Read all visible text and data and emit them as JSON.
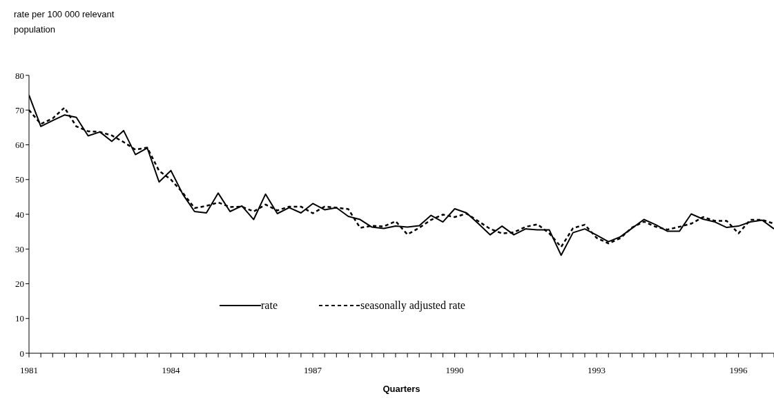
{
  "chart_data": {
    "type": "line",
    "ylabel": "rate per 100 000 relevant population",
    "xlabel": "Quarters",
    "categories": [
      "1981",
      null,
      null,
      null,
      null,
      null,
      null,
      null,
      null,
      null,
      null,
      null,
      "1984",
      null,
      null,
      null,
      null,
      null,
      null,
      null,
      null,
      null,
      null,
      null,
      "1987",
      null,
      null,
      null,
      null,
      null,
      null,
      null,
      null,
      null,
      null,
      null,
      "1990",
      null,
      null,
      null,
      null,
      null,
      null,
      null,
      null,
      null,
      null,
      null,
      "1993",
      null,
      null,
      null,
      null,
      null,
      null,
      null,
      null,
      null,
      null,
      null,
      "1996",
      null,
      null,
      null
    ],
    "series": [
      {
        "name": "rate",
        "color": "#000000",
        "line_style": "solid",
        "values": [
          74.3,
          65.3,
          67.0,
          68.6,
          67.9,
          62.6,
          63.7,
          61.0,
          64.1,
          57.2,
          59.1,
          49.3,
          52.6,
          45.8,
          40.8,
          40.4,
          46.1,
          40.8,
          42.4,
          38.5,
          45.8,
          40.2,
          41.9,
          40.4,
          43.1,
          41.3,
          41.9,
          39.4,
          38.5,
          36.3,
          35.9,
          36.6,
          36.3,
          36.7,
          39.7,
          37.8,
          41.6,
          40.4,
          37.3,
          34.1,
          36.6,
          34.1,
          35.8,
          35.5,
          35.5,
          28.2,
          34.7,
          35.8,
          34.0,
          32.1,
          33.5,
          36.0,
          38.5,
          37.0,
          35.1,
          35.1,
          40.1,
          38.6,
          37.8,
          36.2,
          36.6,
          37.8,
          38.3,
          35.8
        ]
      },
      {
        "name": "seasonally adjusted rate",
        "color": "#000000",
        "line_style": "dashed",
        "values": [
          70.0,
          66.0,
          67.6,
          70.7,
          65.3,
          63.9,
          63.7,
          62.7,
          60.8,
          58.6,
          59.2,
          52.5,
          50.0,
          46.2,
          41.8,
          42.4,
          43.4,
          42.1,
          42.2,
          40.8,
          42.8,
          41.1,
          42.2,
          42.2,
          40.3,
          42.2,
          41.9,
          41.5,
          36.1,
          36.7,
          36.5,
          38.0,
          34.2,
          36.1,
          38.4,
          39.9,
          39.2,
          40.2,
          38.0,
          35.8,
          34.5,
          34.8,
          36.4,
          37.1,
          34.5,
          30.6,
          36.0,
          37.0,
          33.2,
          31.6,
          33.1,
          36.2,
          37.9,
          36.4,
          35.6,
          36.4,
          37.3,
          39.2,
          38.1,
          38.1,
          34.5,
          38.4,
          38.4,
          37.3
        ]
      }
    ],
    "ylim": [
      0,
      80
    ],
    "yticks": [
      0,
      10,
      20,
      30,
      40,
      50,
      60,
      70,
      80
    ],
    "grid": false,
    "legend": "bottom",
    "marker": "none"
  }
}
